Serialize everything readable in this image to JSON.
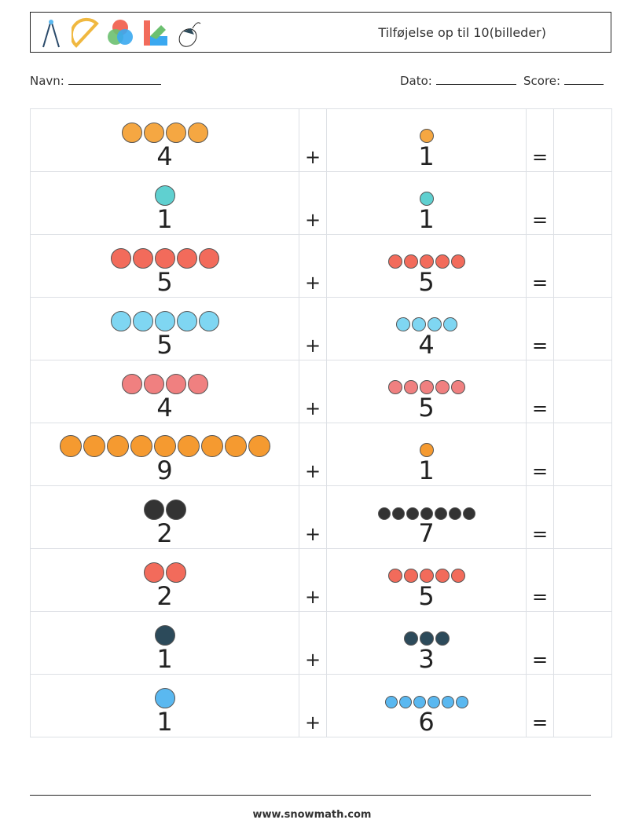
{
  "header": {
    "title": "Tilføjelse op til 10(billeder)",
    "icons": [
      "compass-icon",
      "protractor-icon",
      "color-wheel-icon",
      "color-swatch-icon",
      "mouse-icon"
    ]
  },
  "meta": {
    "name_label": "Navn:",
    "date_label": "Dato:",
    "score_label": "Score:"
  },
  "operators": {
    "plus": "+",
    "equals": "="
  },
  "rows": [
    {
      "a": 4,
      "a_icon": "pizza",
      "b": 1,
      "b_icon": "pizza",
      "color": "#f5a742"
    },
    {
      "a": 1,
      "a_icon": "phone-location",
      "b": 1,
      "b_icon": "phone-location",
      "color": "#5fd0d0"
    },
    {
      "a": 5,
      "a_icon": "balloons",
      "b": 5,
      "b_icon": "balloons",
      "color": "#f26b5b"
    },
    {
      "a": 5,
      "a_icon": "rocket",
      "b": 4,
      "b_icon": "rocket",
      "color": "#7fd6f2"
    },
    {
      "a": 4,
      "a_icon": "bus",
      "b": 5,
      "b_icon": "bus",
      "color": "#f08080"
    },
    {
      "a": 9,
      "a_icon": "pumpkin",
      "b": 1,
      "b_icon": "pumpkin",
      "color": "#f59a30"
    },
    {
      "a": 2,
      "a_icon": "target",
      "b": 7,
      "b_icon": "target",
      "color": "#333333"
    },
    {
      "a": 2,
      "a_icon": "worm",
      "b": 5,
      "b_icon": "worm",
      "color": "#f26b5b"
    },
    {
      "a": 1,
      "a_icon": "film-reel",
      "b": 3,
      "b_icon": "film-reel",
      "color": "#2c4a5a"
    },
    {
      "a": 1,
      "a_icon": "robot",
      "b": 6,
      "b_icon": "robot",
      "color": "#5ab8f0"
    }
  ],
  "footer": {
    "text": "www.snowmath.com"
  }
}
